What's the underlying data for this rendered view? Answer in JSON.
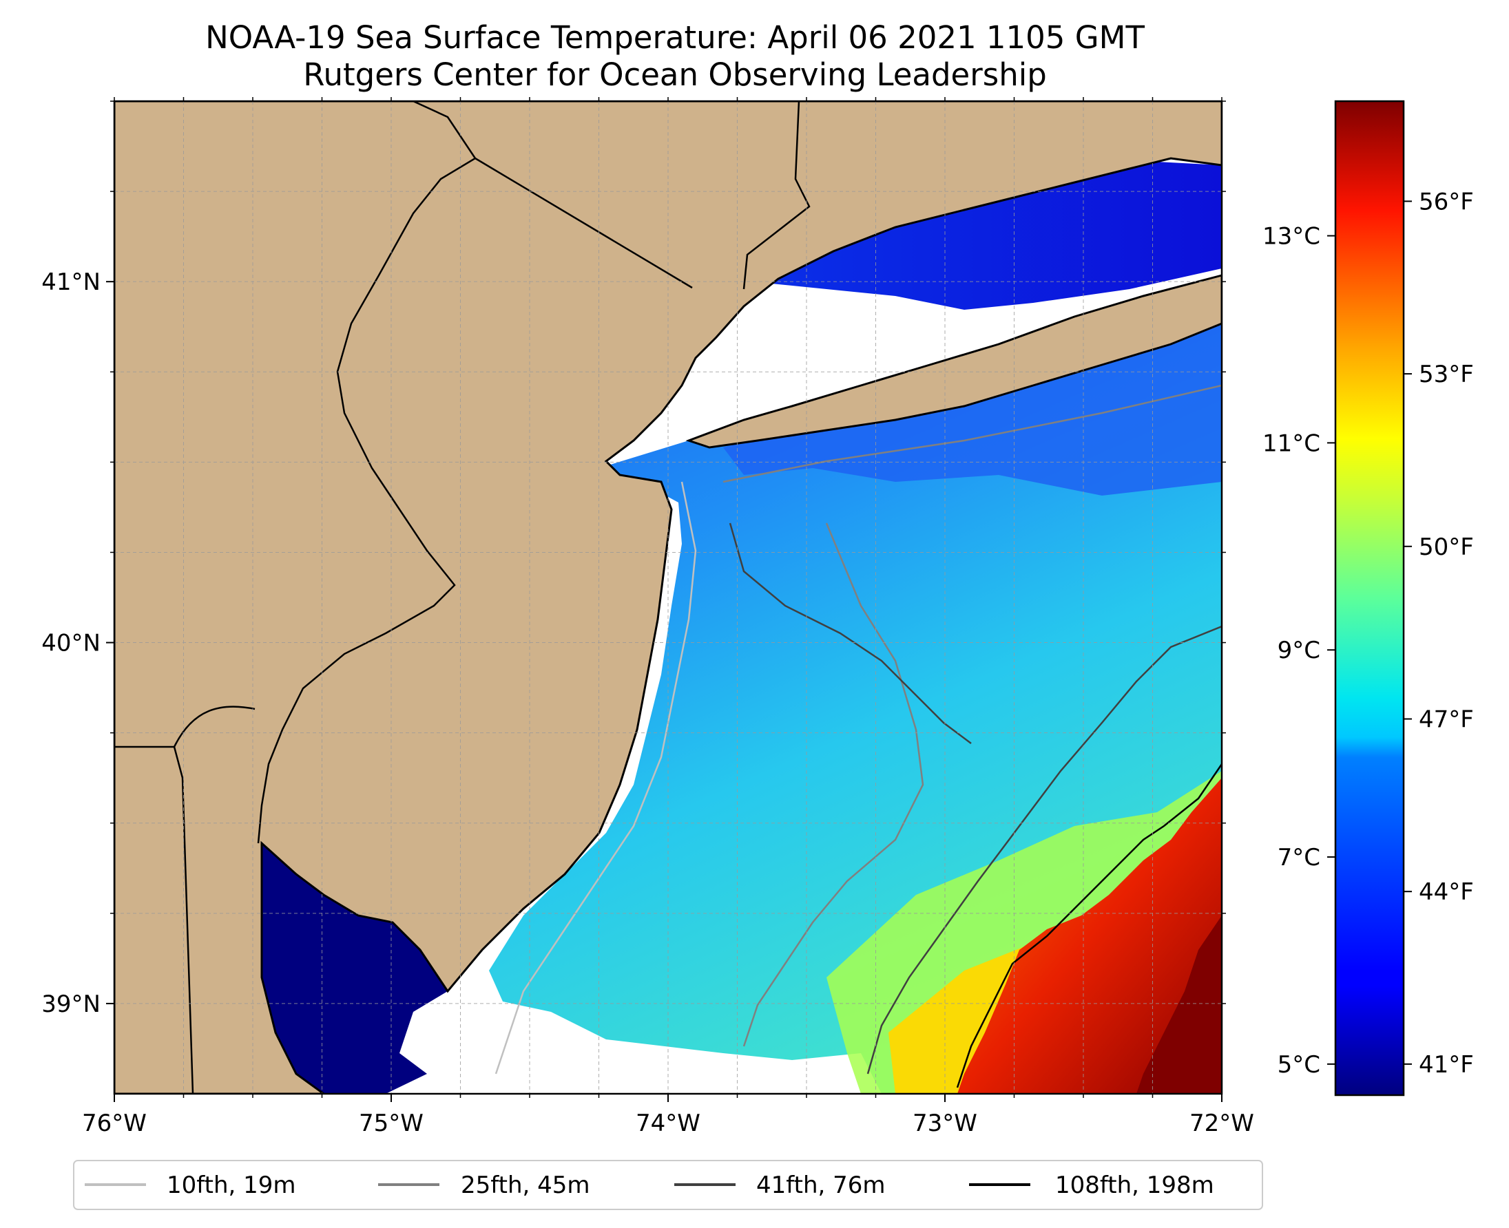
{
  "title": {
    "line1": "NOAA-19 Sea Surface Temperature: April 06 2021 1105 GMT",
    "line2": "Rutgers Center for Ocean Observing Leadership"
  },
  "map": {
    "extent": {
      "lon_min": -76.0,
      "lon_max": -72.0,
      "lat_min": 38.75,
      "lat_max": 41.5
    },
    "x_ticks": [
      {
        "value": -76,
        "label": "76°W"
      },
      {
        "value": -75,
        "label": "75°W"
      },
      {
        "value": -74,
        "label": "74°W"
      },
      {
        "value": -73,
        "label": "73°W"
      },
      {
        "value": -72,
        "label": "72°W"
      }
    ],
    "y_ticks": [
      {
        "value": 39,
        "label": "39°N"
      },
      {
        "value": 40,
        "label": "40°N"
      },
      {
        "value": 41,
        "label": "41°N"
      }
    ],
    "gridlines": true,
    "colors": {
      "land": "#cfb28b",
      "coastline": "#000000",
      "grid": "#9a9a9a"
    }
  },
  "colorbar": {
    "cmap": "jet",
    "range_c": [
      4.7,
      14.3
    ],
    "celsius_ticks": [
      {
        "value": 5,
        "label": "5°C"
      },
      {
        "value": 7,
        "label": "7°C"
      },
      {
        "value": 9,
        "label": "9°C"
      },
      {
        "value": 11,
        "label": "11°C"
      },
      {
        "value": 13,
        "label": "13°C"
      }
    ],
    "fahrenheit_ticks": [
      {
        "value": 41,
        "label": "41°F"
      },
      {
        "value": 44,
        "label": "44°F"
      },
      {
        "value": 47,
        "label": "47°F"
      },
      {
        "value": 50,
        "label": "50°F"
      },
      {
        "value": 53,
        "label": "53°F"
      },
      {
        "value": 56,
        "label": "56°F"
      }
    ]
  },
  "legend": {
    "placement": "bottom-center",
    "items": [
      {
        "label": "10fth, 19m",
        "color": "#c0c0c0"
      },
      {
        "label": "25fth, 45m",
        "color": "#808080"
      },
      {
        "label": "41fth, 76m",
        "color": "#404040"
      },
      {
        "label": "108fth, 198m",
        "color": "#000000"
      }
    ]
  }
}
